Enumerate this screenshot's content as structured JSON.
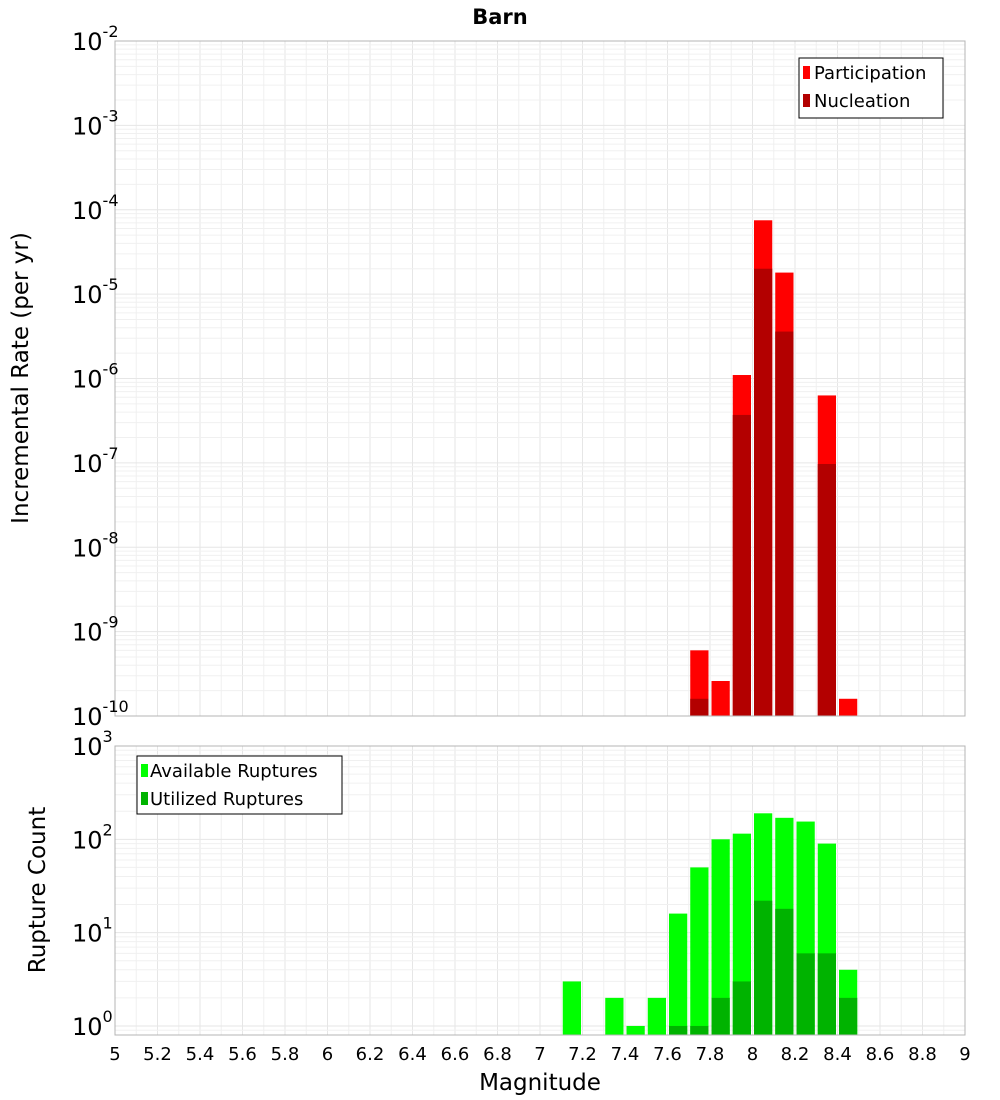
{
  "chart_data": [
    {
      "type": "bar",
      "title": "Barn",
      "xlabel": "",
      "ylabel": "Incremental Rate (per yr)",
      "yscale": "log",
      "ylim": [
        1e-10,
        0.01
      ],
      "xlim": [
        5,
        9
      ],
      "bin_width": 0.1,
      "ytick_exponents": [
        -10,
        -9,
        -8,
        -7,
        -6,
        -5,
        -4,
        -3,
        -2
      ],
      "legend_position": "top-right",
      "series": [
        {
          "name": "Participation",
          "color": "#ff0000",
          "x": [
            7.75,
            7.85,
            7.95,
            8.05,
            8.15,
            8.35,
            8.45
          ],
          "values": [
            6e-10,
            2.6e-10,
            1.1e-06,
            7.5e-05,
            1.8e-05,
            6.3e-07,
            1.6e-10
          ]
        },
        {
          "name": "Nucleation",
          "color": "#b30000",
          "x": [
            7.75,
            7.95,
            8.05,
            8.15,
            8.35
          ],
          "values": [
            1.6e-10,
            3.7e-07,
            2e-05,
            3.6e-06,
            9.7e-08
          ]
        }
      ]
    },
    {
      "type": "bar",
      "title": "",
      "xlabel": "Magnitude",
      "ylabel": "Rupture Count",
      "yscale": "log",
      "ylim": [
        0.8,
        1000
      ],
      "xlim": [
        5,
        9
      ],
      "bin_width": 0.1,
      "ytick_exponents": [
        0,
        1,
        2,
        3
      ],
      "xticks": [
        "5",
        "5.2",
        "5.4",
        "5.6",
        "5.8",
        "6",
        "6.2",
        "6.4",
        "6.6",
        "6.8",
        "7",
        "7.2",
        "7.4",
        "7.6",
        "7.8",
        "8",
        "8.2",
        "8.4",
        "8.6",
        "8.8",
        "9"
      ],
      "legend_position": "top-left",
      "series": [
        {
          "name": "Available Ruptures",
          "color": "#00ff00",
          "x": [
            7.15,
            7.35,
            7.45,
            7.55,
            7.65,
            7.75,
            7.85,
            7.95,
            8.05,
            8.15,
            8.25,
            8.35,
            8.45
          ],
          "values": [
            3,
            2,
            1,
            2,
            16,
            50,
            100,
            115,
            190,
            170,
            155,
            90,
            4
          ]
        },
        {
          "name": "Utilized Ruptures",
          "color": "#00b300",
          "x": [
            7.65,
            7.75,
            7.85,
            7.95,
            8.05,
            8.15,
            8.25,
            8.35,
            8.45
          ],
          "values": [
            1,
            1,
            2,
            3,
            22,
            18,
            6,
            6,
            2
          ]
        }
      ]
    }
  ]
}
